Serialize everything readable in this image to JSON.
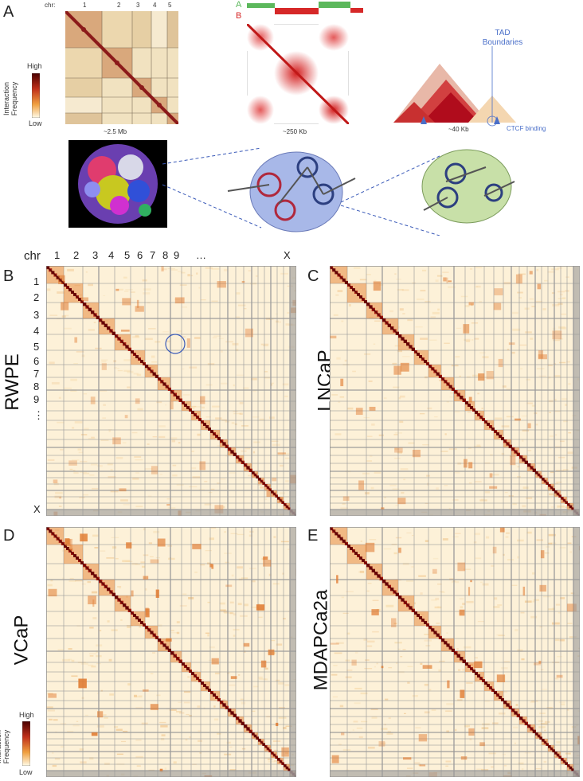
{
  "panel_a": {
    "letter": "A",
    "chr_prefix": "chr:",
    "chr_labels": [
      "1",
      "2",
      "3",
      "4",
      "5"
    ],
    "scale_whole": "~2.5 Mb",
    "compartment_labels": {
      "a": "A",
      "b": "B"
    },
    "scale_compartment": "~250 Kb",
    "tad_label": "TAD Boundaries",
    "ctcf_label": "CTCF binding",
    "scale_tad": "~40 Kb",
    "legend": {
      "high": "High",
      "low": "Low",
      "title": "Interaction Frequency"
    },
    "colors": {
      "compartment_a": "#5cb85c",
      "compartment_b": "#d62828",
      "tad_blue": "#4a6fc9"
    }
  },
  "panel_b": {
    "letter": "B",
    "cell_line": "RWPE",
    "chr_header": "chr",
    "top_labels": [
      "1",
      "2",
      "3",
      "4",
      "5",
      "6",
      "7",
      "8",
      "9",
      "…",
      "X"
    ],
    "left_labels": [
      "1",
      "2",
      "3",
      "4",
      "5",
      "6",
      "7",
      "8",
      "9",
      "⋮",
      "X"
    ]
  },
  "panel_c": {
    "letter": "C",
    "cell_line": "LNCaP"
  },
  "panel_d": {
    "letter": "D",
    "cell_line": "VCaP",
    "legend": {
      "high": "High",
      "low": "Low",
      "title": "Interaction Frequency"
    }
  },
  "panel_e": {
    "letter": "E",
    "cell_line": "MDAPCa2a"
  }
}
